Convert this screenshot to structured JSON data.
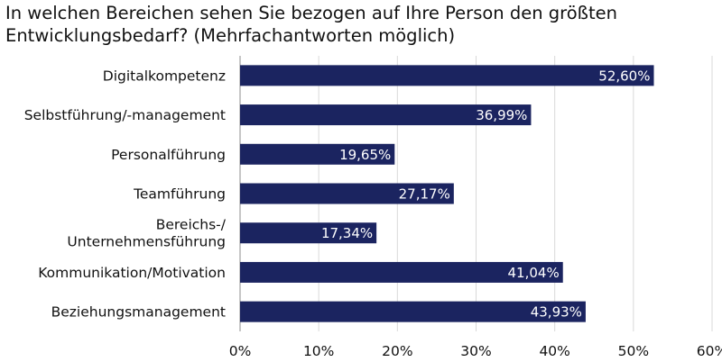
{
  "chart_data": {
    "type": "bar",
    "orientation": "horizontal",
    "title": "In welchen Bereichen sehen Sie bezogen auf Ihre Person den größten Entwicklungsbedarf? (Mehrfachantworten möglich)",
    "categories": [
      "Digitalkompetenz",
      "Selbstführung/-management",
      "Personalführung",
      "Teamführung",
      "Bereichs-/\nUnternehmensführung",
      "Kommunikation/Motivation",
      "Beziehungsmanagement"
    ],
    "values": [
      52.6,
      36.99,
      19.65,
      27.17,
      17.34,
      41.04,
      43.93
    ],
    "data_labels": [
      "52,60%",
      "36,99%",
      "19,65%",
      "27,17%",
      "17,34%",
      "41,04%",
      "43,93%"
    ],
    "xlim": [
      0,
      60
    ],
    "x_ticks": [
      0,
      10,
      20,
      30,
      40,
      50,
      60
    ],
    "x_tick_labels": [
      "0%",
      "10%",
      "20%",
      "30%",
      "40%",
      "50%",
      "60%"
    ],
    "xlabel": "",
    "ylabel": "",
    "grid": true,
    "legend": "none",
    "colors": {
      "bar": "#1b2460",
      "grid": "#d9d9d9",
      "text": "#111111",
      "data_label": "#ffffff"
    }
  }
}
